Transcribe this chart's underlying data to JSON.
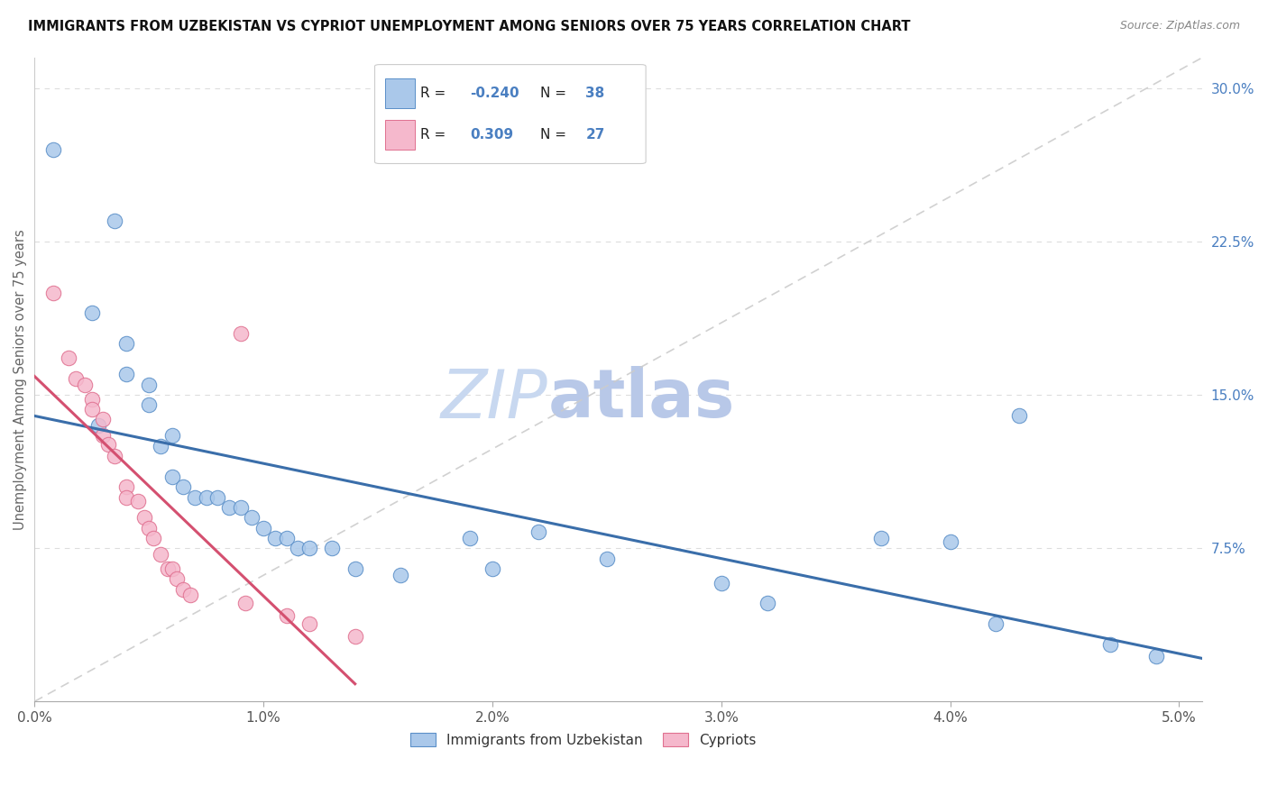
{
  "title": "IMMIGRANTS FROM UZBEKISTAN VS CYPRIOT UNEMPLOYMENT AMONG SENIORS OVER 75 YEARS CORRELATION CHART",
  "source": "Source: ZipAtlas.com",
  "ylabel": "Unemployment Among Seniors over 75 years",
  "legend1_label": "Immigrants from Uzbekistan",
  "legend2_label": "Cypriots",
  "r1": "-0.240",
  "n1": "38",
  "r2": "0.309",
  "n2": "27",
  "blue_fill": "#aac8ea",
  "pink_fill": "#f5b8cc",
  "blue_edge": "#5a8fc8",
  "pink_edge": "#e07090",
  "blue_line": "#3a6eaa",
  "pink_line": "#d45070",
  "ref_line_color": "#cccccc",
  "grid_color": "#dddddd",
  "blue_scatter": [
    [
      0.0008,
      0.27
    ],
    [
      0.0035,
      0.235
    ],
    [
      0.0025,
      0.19
    ],
    [
      0.004,
      0.175
    ],
    [
      0.004,
      0.16
    ],
    [
      0.005,
      0.155
    ],
    [
      0.005,
      0.145
    ],
    [
      0.0028,
      0.135
    ],
    [
      0.006,
      0.13
    ],
    [
      0.0055,
      0.125
    ],
    [
      0.006,
      0.11
    ],
    [
      0.0065,
      0.105
    ],
    [
      0.007,
      0.1
    ],
    [
      0.0075,
      0.1
    ],
    [
      0.008,
      0.1
    ],
    [
      0.0085,
      0.095
    ],
    [
      0.009,
      0.095
    ],
    [
      0.0095,
      0.09
    ],
    [
      0.01,
      0.085
    ],
    [
      0.0105,
      0.08
    ],
    [
      0.011,
      0.08
    ],
    [
      0.0115,
      0.075
    ],
    [
      0.012,
      0.075
    ],
    [
      0.013,
      0.075
    ],
    [
      0.014,
      0.065
    ],
    [
      0.016,
      0.062
    ],
    [
      0.019,
      0.08
    ],
    [
      0.02,
      0.065
    ],
    [
      0.022,
      0.083
    ],
    [
      0.025,
      0.07
    ],
    [
      0.03,
      0.058
    ],
    [
      0.032,
      0.048
    ],
    [
      0.037,
      0.08
    ],
    [
      0.04,
      0.078
    ],
    [
      0.042,
      0.038
    ],
    [
      0.043,
      0.14
    ],
    [
      0.047,
      0.028
    ],
    [
      0.049,
      0.022
    ]
  ],
  "pink_scatter": [
    [
      0.0008,
      0.2
    ],
    [
      0.0015,
      0.168
    ],
    [
      0.0018,
      0.158
    ],
    [
      0.0022,
      0.155
    ],
    [
      0.0025,
      0.148
    ],
    [
      0.0025,
      0.143
    ],
    [
      0.003,
      0.138
    ],
    [
      0.003,
      0.13
    ],
    [
      0.0032,
      0.126
    ],
    [
      0.0035,
      0.12
    ],
    [
      0.004,
      0.105
    ],
    [
      0.004,
      0.1
    ],
    [
      0.0045,
      0.098
    ],
    [
      0.0048,
      0.09
    ],
    [
      0.005,
      0.085
    ],
    [
      0.0052,
      0.08
    ],
    [
      0.0055,
      0.072
    ],
    [
      0.0058,
      0.065
    ],
    [
      0.006,
      0.065
    ],
    [
      0.0062,
      0.06
    ],
    [
      0.0065,
      0.055
    ],
    [
      0.0068,
      0.052
    ],
    [
      0.009,
      0.18
    ],
    [
      0.0092,
      0.048
    ],
    [
      0.011,
      0.042
    ],
    [
      0.012,
      0.038
    ],
    [
      0.014,
      0.032
    ]
  ],
  "xmin": 0.0,
  "xmax": 0.051,
  "ymin": 0.0,
  "ymax": 0.315,
  "xticks": [
    0.0,
    0.01,
    0.02,
    0.03,
    0.04,
    0.05
  ],
  "xtick_labels": [
    "0.0%",
    "1.0%",
    "2.0%",
    "3.0%",
    "4.0%",
    "5.0%"
  ],
  "ytick_vals": [
    0.075,
    0.15,
    0.225,
    0.3
  ],
  "ytick_labels": [
    "7.5%",
    "15.0%",
    "22.5%",
    "30.0%"
  ],
  "watermark_zip": "ZIP",
  "watermark_atlas": "atlas",
  "watermark_color_zip": "#c8d8f0",
  "watermark_color_atlas": "#b8c8e8"
}
